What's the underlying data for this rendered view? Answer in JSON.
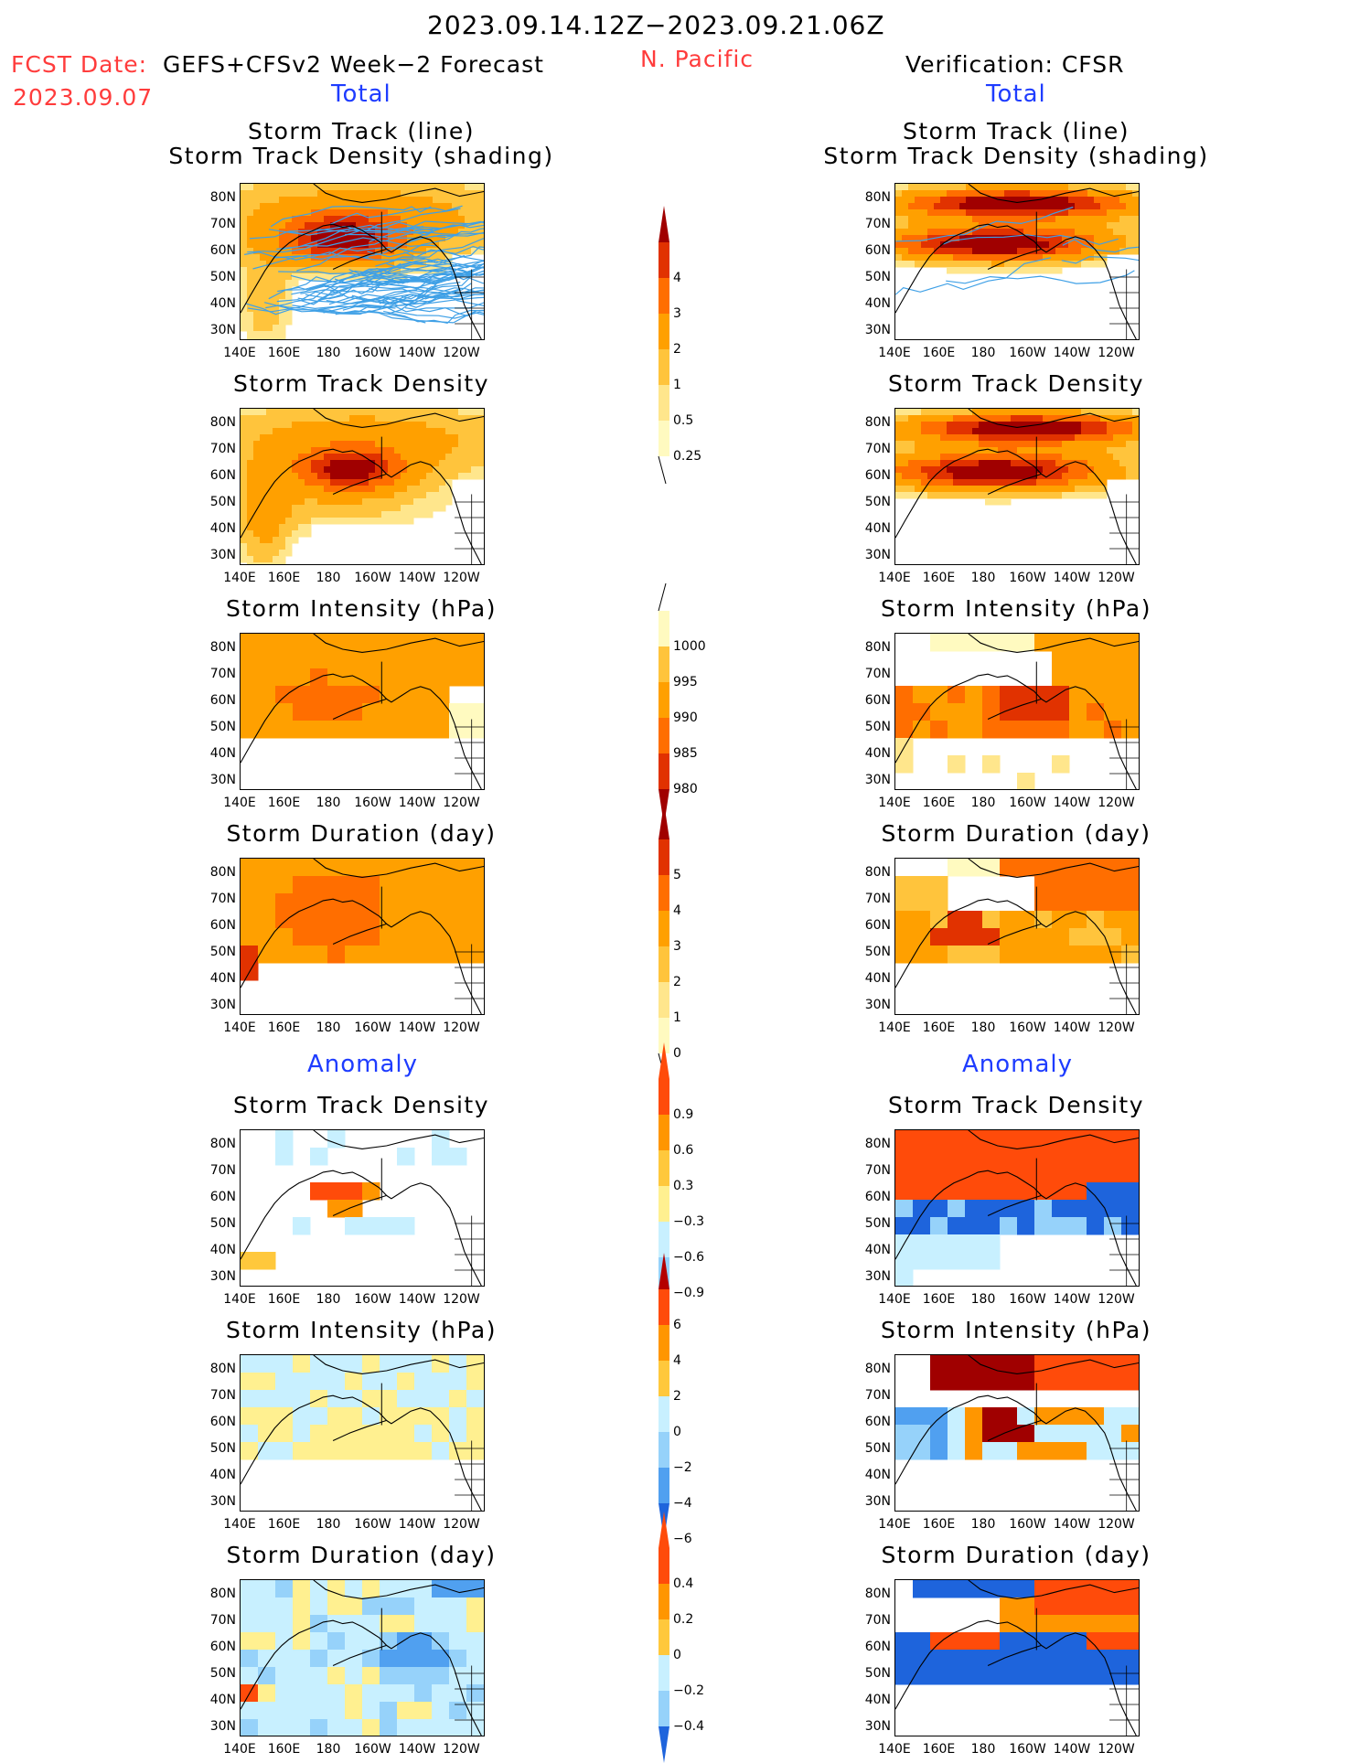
{
  "header": {
    "period": "2023.09.14.12Z−2023.09.21.06Z",
    "fcst_label": "FCST Date:",
    "model": "GEFS+CFSv2 Week−2 Forecast",
    "fcst_date": "2023.09.07",
    "region": "N. Pacific",
    "verification": "Verification: CFSR"
  },
  "sections": {
    "total": "Total",
    "anomaly": "Anomaly"
  },
  "panel_titles": {
    "track": "Storm Track (line)\nStorm Track Density (shading)",
    "density": "Storm Track Density",
    "intensity": "Storm Intensity (hPa)",
    "duration": "Storm Duration (day)"
  },
  "axes": {
    "lat_ticks": [
      "80N",
      "70N",
      "60N",
      "50N",
      "40N",
      "30N"
    ],
    "lon_ticks": [
      "140E",
      "160E",
      "180",
      "160W",
      "140W",
      "120W"
    ]
  },
  "colors": {
    "title_red": "#ff3c3c",
    "title_blue": "#1e3cff",
    "track_line": "#3fa0e6",
    "pos_scale": [
      "#fffac0",
      "#ffe68c",
      "#ffc43c",
      "#ffa000",
      "#ff6e00",
      "#e13200",
      "#a00000"
    ],
    "anom_scale": [
      "#1e64dc",
      "#50a0f0",
      "#96d2fa",
      "#c8f0ff",
      "#ffffff",
      "#fff090",
      "#ffc83c",
      "#ff9600",
      "#ff4b0a"
    ]
  },
  "chart_data": [
    {
      "type": "heatmap",
      "id": "fcst-total-track",
      "title": "Storm Track (line) Storm Track Density (shading)",
      "xlabel": "",
      "ylabel": "",
      "colorbar": [
        "0.25",
        "0.5",
        "1",
        "2",
        "3",
        "4"
      ],
      "overlay": "storm track lines"
    },
    {
      "type": "heatmap",
      "id": "fcst-total-density",
      "title": "Storm Track Density",
      "colorbar": [
        "0.25",
        "0.5",
        "1",
        "2",
        "3",
        "4"
      ]
    },
    {
      "type": "heatmap",
      "id": "fcst-total-intensity",
      "title": "Storm Intensity (hPa)",
      "colorbar": [
        "1000",
        "995",
        "990",
        "985",
        "980"
      ]
    },
    {
      "type": "heatmap",
      "id": "fcst-total-duration",
      "title": "Storm Duration (day)",
      "colorbar": [
        "5",
        "4",
        "3",
        "2",
        "1",
        "0"
      ]
    },
    {
      "type": "heatmap",
      "id": "fcst-anom-density",
      "title": "Storm Track Density",
      "colorbar": [
        "0.9",
        "0.6",
        "0.3",
        "−0.3",
        "−0.6",
        "−0.9"
      ]
    },
    {
      "type": "heatmap",
      "id": "fcst-anom-intensity",
      "title": "Storm Intensity (hPa)",
      "colorbar": [
        "6",
        "4",
        "2",
        "0",
        "−2",
        "−4",
        "−6"
      ]
    },
    {
      "type": "heatmap",
      "id": "fcst-anom-duration",
      "title": "Storm Duration (day)",
      "colorbar": [
        "0.4",
        "0.2",
        "0",
        "−0.2",
        "−0.4"
      ]
    },
    {
      "type": "heatmap",
      "id": "verif-total-track",
      "title": "Storm Track (line) Storm Track Density (shading)"
    },
    {
      "type": "heatmap",
      "id": "verif-total-density",
      "title": "Storm Track Density"
    },
    {
      "type": "heatmap",
      "id": "verif-total-intensity",
      "title": "Storm Intensity (hPa)"
    },
    {
      "type": "heatmap",
      "id": "verif-total-duration",
      "title": "Storm Duration (day)"
    },
    {
      "type": "heatmap",
      "id": "verif-anom-density",
      "title": "Storm Track Density"
    },
    {
      "type": "heatmap",
      "id": "verif-anom-intensity",
      "title": "Storm Intensity (hPa)"
    },
    {
      "type": "heatmap",
      "id": "verif-anom-duration",
      "title": "Storm Duration (day)"
    }
  ],
  "colorbars": {
    "density": [
      "4",
      "3",
      "2",
      "1",
      "0.5",
      "0.25"
    ],
    "intensity": [
      "1000",
      "995",
      "990",
      "985",
      "980"
    ],
    "duration": [
      "5",
      "4",
      "3",
      "2",
      "1",
      "0"
    ],
    "anom_density": [
      "0.9",
      "0.6",
      "0.3",
      "−0.3",
      "−0.6",
      "−0.9"
    ],
    "anom_intensity": [
      "6",
      "4",
      "2",
      "0",
      "−2",
      "−4",
      "−6"
    ],
    "anom_duration": [
      "0.4",
      "0.2",
      "0",
      "−0.2",
      "−0.4"
    ]
  }
}
